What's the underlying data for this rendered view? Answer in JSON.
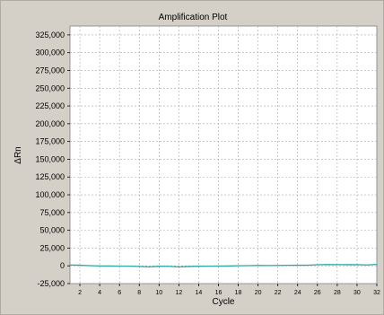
{
  "chart_data": {
    "type": "line",
    "title": "Amplification Plot",
    "xlabel": "Cycle",
    "ylabel": "ΔRn",
    "xlim": [
      1,
      32
    ],
    "ylim": [
      -25000,
      337500
    ],
    "x_ticks": [
      2,
      4,
      6,
      8,
      10,
      12,
      14,
      16,
      18,
      20,
      22,
      24,
      26,
      28,
      30,
      32
    ],
    "y_ticks": [
      -25000,
      0,
      25000,
      50000,
      75000,
      100000,
      125000,
      150000,
      175000,
      200000,
      225000,
      250000,
      275000,
      300000,
      325000
    ],
    "y_tick_labels": [
      "-25,000",
      "0",
      "25,000",
      "50,000",
      "75,000",
      "100,000",
      "125,000",
      "150,000",
      "175,000",
      "200,000",
      "225,000",
      "250,000",
      "275,000",
      "300,000",
      "325,000"
    ],
    "grid": true,
    "plot_background": "#ffffff",
    "series": [
      {
        "color": "#2aa7a7",
        "x": [
          1,
          2,
          3,
          4,
          5,
          6,
          7,
          8,
          9,
          10,
          11,
          12,
          13,
          14,
          15,
          16,
          17,
          18,
          19,
          20,
          21,
          22,
          23,
          24,
          25,
          26,
          27,
          28,
          29,
          30,
          31,
          32
        ],
        "values": [
          1200,
          800,
          300,
          -200,
          -300,
          -400,
          -500,
          -800,
          -1500,
          -600,
          -700,
          -1500,
          -900,
          -600,
          -500,
          -400,
          -300,
          100,
          300,
          500,
          400,
          600,
          700,
          800,
          900,
          1500,
          1800,
          1700,
          1600,
          1700,
          1200,
          2000
        ]
      }
    ]
  }
}
